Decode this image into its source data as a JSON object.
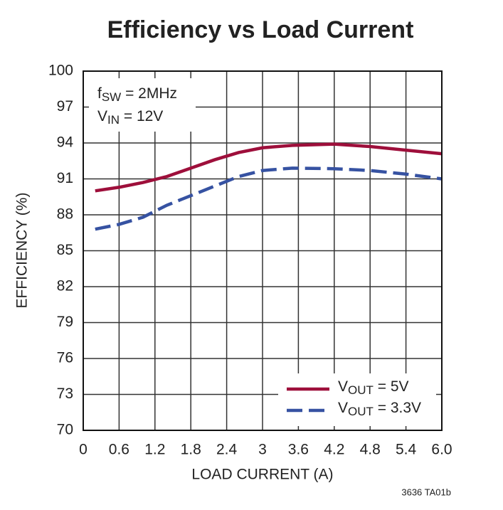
{
  "chart_data": {
    "type": "line",
    "title": "Efficiency vs Load Current",
    "xlabel": "LOAD CURRENT (A)",
    "ylabel": "EFFICIENCY (%)",
    "annotations": [
      "fSW = 2MHz",
      "VIN = 12V"
    ],
    "footnote": "3636 TA01b",
    "x": [
      0.2,
      0.6,
      1.0,
      1.4,
      1.8,
      2.2,
      2.6,
      3.0,
      3.5,
      4.2,
      4.8,
      5.4,
      6.0
    ],
    "series": [
      {
        "name": "VOUT = 5V",
        "color": "#9e0f3b",
        "dash": "solid",
        "values": [
          90.0,
          90.3,
          90.7,
          91.2,
          91.9,
          92.6,
          93.2,
          93.6,
          93.8,
          93.9,
          93.7,
          93.4,
          93.1
        ]
      },
      {
        "name": "VOUT = 3.3V",
        "color": "#3652a2",
        "dash": "dashed",
        "values": [
          86.8,
          87.2,
          87.8,
          88.8,
          89.6,
          90.4,
          91.2,
          91.7,
          91.9,
          91.85,
          91.7,
          91.4,
          91.0
        ]
      }
    ],
    "xlim": [
      0,
      6
    ],
    "xticks": [
      0,
      0.6,
      1.2,
      1.8,
      2.4,
      3,
      3.6,
      4.2,
      4.8,
      5.4,
      {
        "value": 6,
        "label": "6.0"
      }
    ],
    "ylim": [
      70,
      100
    ],
    "yticks": [
      70,
      73,
      76,
      79,
      82,
      85,
      88,
      91,
      94,
      97,
      100
    ],
    "grid": true,
    "legend": "lower right"
  }
}
